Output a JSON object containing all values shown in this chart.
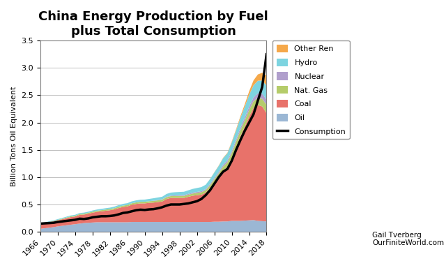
{
  "title": "China Energy Production by Fuel\nplus Total Consumption",
  "ylabel": "Billion Tons Oil Equivalent",
  "years": [
    1966,
    1967,
    1968,
    1969,
    1970,
    1971,
    1972,
    1973,
    1974,
    1975,
    1976,
    1977,
    1978,
    1979,
    1980,
    1981,
    1982,
    1983,
    1984,
    1985,
    1986,
    1987,
    1988,
    1989,
    1990,
    1991,
    1992,
    1993,
    1994,
    1995,
    1996,
    1997,
    1998,
    1999,
    2000,
    2001,
    2002,
    2003,
    2004,
    2005,
    2006,
    2007,
    2008,
    2009,
    2010,
    2011,
    2012,
    2013,
    2014,
    2015,
    2016,
    2017,
    2018
  ],
  "oil": [
    0.055,
    0.065,
    0.075,
    0.085,
    0.1,
    0.11,
    0.12,
    0.13,
    0.14,
    0.15,
    0.16,
    0.165,
    0.17,
    0.175,
    0.175,
    0.175,
    0.175,
    0.175,
    0.175,
    0.175,
    0.175,
    0.18,
    0.18,
    0.18,
    0.18,
    0.18,
    0.18,
    0.18,
    0.18,
    0.18,
    0.18,
    0.18,
    0.18,
    0.18,
    0.18,
    0.18,
    0.18,
    0.18,
    0.18,
    0.18,
    0.185,
    0.185,
    0.19,
    0.19,
    0.2,
    0.2,
    0.2,
    0.205,
    0.21,
    0.215,
    0.2,
    0.195,
    0.19
  ],
  "coal": [
    0.09,
    0.09,
    0.1,
    0.105,
    0.11,
    0.12,
    0.13,
    0.14,
    0.14,
    0.16,
    0.155,
    0.165,
    0.18,
    0.19,
    0.2,
    0.21,
    0.22,
    0.235,
    0.26,
    0.28,
    0.29,
    0.315,
    0.33,
    0.34,
    0.34,
    0.35,
    0.355,
    0.365,
    0.375,
    0.42,
    0.44,
    0.44,
    0.44,
    0.44,
    0.46,
    0.48,
    0.49,
    0.5,
    0.535,
    0.62,
    0.72,
    0.82,
    0.93,
    1.0,
    1.15,
    1.35,
    1.55,
    1.72,
    1.9,
    2.05,
    2.12,
    2.1,
    1.98
  ],
  "nat_gas": [
    0.005,
    0.006,
    0.007,
    0.008,
    0.009,
    0.01,
    0.012,
    0.014,
    0.015,
    0.016,
    0.017,
    0.018,
    0.019,
    0.02,
    0.021,
    0.022,
    0.022,
    0.023,
    0.024,
    0.025,
    0.026,
    0.027,
    0.028,
    0.029,
    0.03,
    0.03,
    0.03,
    0.031,
    0.032,
    0.033,
    0.034,
    0.035,
    0.036,
    0.037,
    0.038,
    0.04,
    0.042,
    0.044,
    0.046,
    0.052,
    0.058,
    0.065,
    0.075,
    0.082,
    0.092,
    0.102,
    0.108,
    0.115,
    0.12,
    0.125,
    0.13,
    0.14,
    0.155
  ],
  "nuclear": [
    0.0,
    0.0,
    0.0,
    0.0,
    0.0,
    0.0,
    0.0,
    0.0,
    0.0,
    0.0,
    0.0,
    0.0,
    0.0,
    0.0,
    0.0,
    0.0,
    0.0,
    0.0,
    0.0,
    0.0,
    0.0,
    0.0,
    0.0,
    0.0,
    0.0,
    0.0,
    0.005,
    0.006,
    0.007,
    0.008,
    0.009,
    0.012,
    0.013,
    0.014,
    0.016,
    0.017,
    0.018,
    0.019,
    0.02,
    0.022,
    0.024,
    0.026,
    0.03,
    0.035,
    0.038,
    0.04,
    0.048,
    0.055,
    0.06,
    0.07,
    0.085,
    0.09,
    0.095
  ],
  "hydro": [
    0.01,
    0.011,
    0.011,
    0.012,
    0.013,
    0.014,
    0.015,
    0.016,
    0.017,
    0.018,
    0.019,
    0.02,
    0.022,
    0.023,
    0.024,
    0.025,
    0.026,
    0.028,
    0.03,
    0.032,
    0.033,
    0.035,
    0.037,
    0.038,
    0.04,
    0.042,
    0.044,
    0.046,
    0.048,
    0.052,
    0.055,
    0.058,
    0.06,
    0.062,
    0.065,
    0.068,
    0.072,
    0.075,
    0.08,
    0.09,
    0.1,
    0.11,
    0.12,
    0.13,
    0.155,
    0.165,
    0.18,
    0.195,
    0.215,
    0.22,
    0.23,
    0.245,
    0.26
  ],
  "other_ren": [
    0.0,
    0.0,
    0.0,
    0.0,
    0.0,
    0.0,
    0.0,
    0.0,
    0.0,
    0.0,
    0.0,
    0.0,
    0.0,
    0.0,
    0.0,
    0.0,
    0.0,
    0.0,
    0.0,
    0.0,
    0.0,
    0.0,
    0.0,
    0.0,
    0.0,
    0.0,
    0.0,
    0.0,
    0.0,
    0.0,
    0.0,
    0.0,
    0.0,
    0.0,
    0.0,
    0.0,
    0.0,
    0.0,
    0.0,
    0.002,
    0.004,
    0.006,
    0.008,
    0.01,
    0.015,
    0.02,
    0.03,
    0.045,
    0.065,
    0.09,
    0.115,
    0.14,
    0.18
  ],
  "consumption": [
    0.15,
    0.155,
    0.16,
    0.165,
    0.18,
    0.19,
    0.2,
    0.21,
    0.22,
    0.24,
    0.235,
    0.245,
    0.265,
    0.275,
    0.285,
    0.285,
    0.29,
    0.3,
    0.32,
    0.345,
    0.355,
    0.375,
    0.395,
    0.405,
    0.4,
    0.41,
    0.415,
    0.43,
    0.45,
    0.48,
    0.5,
    0.5,
    0.5,
    0.51,
    0.52,
    0.54,
    0.56,
    0.6,
    0.67,
    0.76,
    0.88,
    1.0,
    1.1,
    1.15,
    1.3,
    1.5,
    1.68,
    1.85,
    2.0,
    2.15,
    2.4,
    2.65,
    3.25
  ],
  "colors": {
    "oil": "#9bb7d4",
    "coal": "#e8726a",
    "nat_gas": "#b5cc6a",
    "nuclear": "#b09fcc",
    "hydro": "#7dd4e0",
    "other_ren": "#f5a84a",
    "consumption": "#000000"
  },
  "ylim": [
    0,
    3.5
  ],
  "xticks": [
    1966,
    1970,
    1974,
    1978,
    1982,
    1986,
    1990,
    1994,
    1998,
    2002,
    2006,
    2010,
    2014,
    2018
  ],
  "yticks": [
    0.0,
    0.5,
    1.0,
    1.5,
    2.0,
    2.5,
    3.0,
    3.5
  ],
  "credit": "Gail Tverberg\nOurFiniteWorld.com"
}
